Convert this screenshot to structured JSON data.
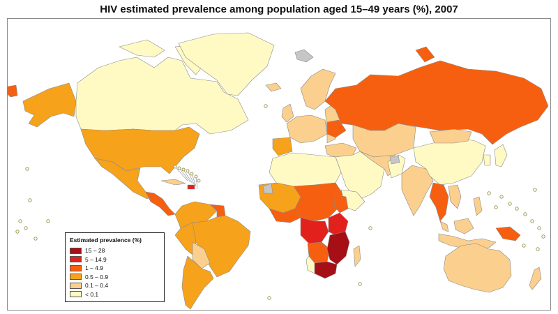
{
  "title": "HIV estimated prevalence among population aged 15–49 years (%), 2007",
  "legend": {
    "title": "Estimated prevalence (%)",
    "items": [
      {
        "label": "15 – 28",
        "color": "#a50f15"
      },
      {
        "label": "5 – 14.9",
        "color": "#e3211c"
      },
      {
        "label": "1 – 4.9",
        "color": "#f75f10"
      },
      {
        "label": "0.5 – 0.9",
        "color": "#f7a21b"
      },
      {
        "label": "0.1 – 0.4",
        "color": "#fbcf8e"
      },
      {
        "label": "< 0.1",
        "color": "#fffac4"
      }
    ]
  },
  "colors": {
    "no_data": "#c6c6c6",
    "border": "#7a7a7a",
    "island_marker": "#9a9a55"
  }
}
